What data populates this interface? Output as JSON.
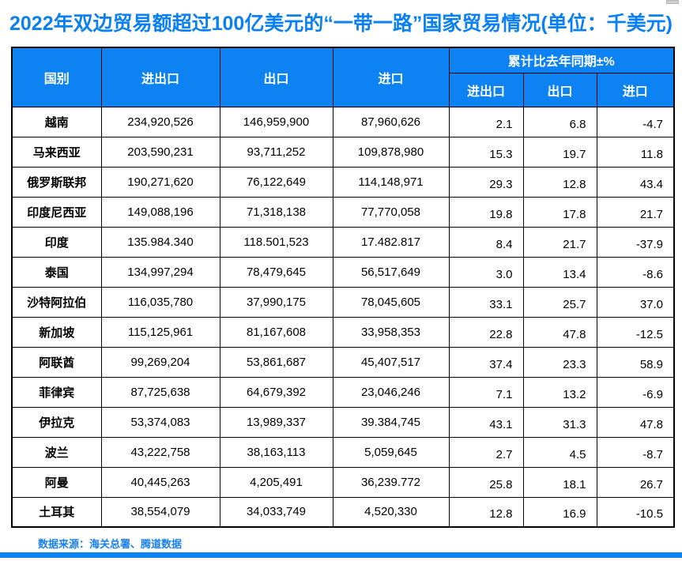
{
  "title": "2022年双边贸易额超过100亿美元的“一带一路”国家贸易情况(单位：千美元)",
  "colors": {
    "header_blue": "#0d82f2",
    "title_blue": "#0b80f2",
    "footer_blue": "#1a80f0",
    "accent_bar_blue": "#0d82f2"
  },
  "table": {
    "headers": {
      "country": "国别",
      "total": "进出口",
      "export": "出口",
      "import": "进口",
      "pct_group": "累计比去年同期±%",
      "pct_total": "进出口",
      "pct_export": "出口",
      "pct_import": "进口"
    },
    "rows": [
      {
        "country": "越南",
        "total": "234,920,526",
        "export": "146,959,900",
        "import": "87,960,626",
        "pct_total": "2.1",
        "pct_export": "6.8",
        "pct_import": "-4.7"
      },
      {
        "country": "马来西亚",
        "total": "203,590,231",
        "export": "93,711,252",
        "import": "109,878,980",
        "pct_total": "15.3",
        "pct_export": "19.7",
        "pct_import": "11.8"
      },
      {
        "country": "俄罗斯联邦",
        "total": "190,271,620",
        "export": "76,122,649",
        "import": "114,148,971",
        "pct_total": "29.3",
        "pct_export": "12.8",
        "pct_import": "43.4"
      },
      {
        "country": "印度尼西亚",
        "total": "149,088,196",
        "export": "71,318,138",
        "import": "77,770,058",
        "pct_total": "19.8",
        "pct_export": "17.8",
        "pct_import": "21.7"
      },
      {
        "country": "印度",
        "total": "135.984.340",
        "export": "118.501,523",
        "import": "17.482.817",
        "pct_total": "8.4",
        "pct_export": "21.7",
        "pct_import": "-37.9"
      },
      {
        "country": "泰国",
        "total": "134,997,294",
        "export": "78,479,645",
        "import": "56,517,649",
        "pct_total": "3.0",
        "pct_export": "13.4",
        "pct_import": "-8.6"
      },
      {
        "country": "沙特阿拉伯",
        "total": "116,035,780",
        "export": "37,990,175",
        "import": "78,045,605",
        "pct_total": "33.1",
        "pct_export": "25.7",
        "pct_import": "37.0"
      },
      {
        "country": "新加坡",
        "total": "115,125,961",
        "export": "81,167,608",
        "import": "33,958,353",
        "pct_total": "22.8",
        "pct_export": "47.8",
        "pct_import": "-12.5"
      },
      {
        "country": "阿联酋",
        "total": "99,269,204",
        "export": "53,861,687",
        "import": "45,407,517",
        "pct_total": "37.4",
        "pct_export": "23.3",
        "pct_import": "58.9"
      },
      {
        "country": "菲律宾",
        "total": "87,725,638",
        "export": "64,679,392",
        "import": "23,046,246",
        "pct_total": "7.1",
        "pct_export": "13.2",
        "pct_import": "-6.9"
      },
      {
        "country": "伊拉克",
        "total": "53,374,083",
        "export": "13,989,337",
        "import": "39.384,745",
        "pct_total": "43.1",
        "pct_export": "31.3",
        "pct_import": "47.8"
      },
      {
        "country": "波兰",
        "total": "43,222,758",
        "export": "38,163,113",
        "import": "5,059,645",
        "pct_total": "2.7",
        "pct_export": "4.5",
        "pct_import": "-8.7"
      },
      {
        "country": "阿曼",
        "total": "40,445,263",
        "export": "4,205,491",
        "import": "36,239.772",
        "pct_total": "25.8",
        "pct_export": "18.1",
        "pct_import": "26.7"
      },
      {
        "country": "土耳其",
        "total": "38,554,079",
        "export": "34,033,749",
        "import": "4,520,330",
        "pct_total": "12.8",
        "pct_export": "16.9",
        "pct_import": "-10.5"
      }
    ]
  },
  "footer": {
    "source": "数据来源：海关总署、腾道数据"
  }
}
